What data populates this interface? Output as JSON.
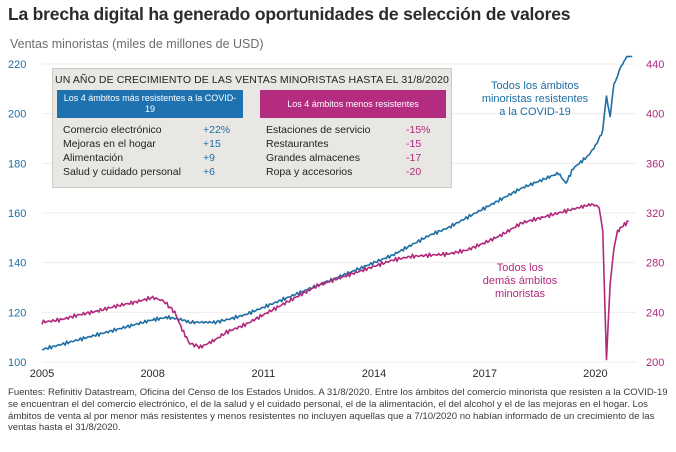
{
  "title": "La brecha digital ha generado oportunidades de selección de valores",
  "subtitle": "Ventas minoristas (miles de millones de USD)",
  "table": {
    "title": "UN AÑO DE CRECIMIENTO DE LAS VENTAS MINORISTAS HASTA EL 31/8/2020",
    "left": {
      "header": "Los 4 ámbitos más resistentes a la COVID-19",
      "rows": [
        {
          "label": "Comercio electrónico",
          "value": "+22%"
        },
        {
          "label": "Mejoras en el hogar",
          "value": "+15"
        },
        {
          "label": "Alimentación",
          "value": "+9"
        },
        {
          "label": "Salud y cuidado personal",
          "value": "+6"
        }
      ]
    },
    "right": {
      "header": "Los 4 ámbitos menos resistentes",
      "rows": [
        {
          "label": "Estaciones de servicio",
          "value": "-15%"
        },
        {
          "label": "Restaurantes",
          "value": "-15"
        },
        {
          "label": "Grandes almacenes",
          "value": "-17"
        },
        {
          "label": "Ropa y accesorios",
          "value": "-20"
        }
      ]
    }
  },
  "footer": "Fuentes: Refinitiv Datastream, Oficina del Censo de los Estados Unidos. A 31/8/2020. Entre los ámbitos del comercio minorista que resisten a la COVID-19 se encuentran el del comercio electrónico, el de la salud y el cuidado personal, el de la alimentación, el del alcohol y el de las mejoras en el hogar. Los ámbitos de venta al por menor más resistentes y menos resistentes no incluyen aquellas que a 7/10/2020 no habían informado de un crecimiento de las ventas hasta el 31/8/2020.",
  "chart_data": {
    "type": "line",
    "x_ticks": [
      "2005",
      "2008",
      "2011",
      "2014",
      "2017",
      "2020"
    ],
    "xlim": [
      2005,
      2021.1
    ],
    "y_left": {
      "ticks": [
        "100",
        "120",
        "140",
        "160",
        "180",
        "200",
        "220"
      ],
      "ylim": [
        100,
        220
      ],
      "color": "#1d6fa3"
    },
    "y_right": {
      "ticks": [
        "200",
        "240",
        "280",
        "320",
        "360",
        "400",
        "440"
      ],
      "ylim": [
        200,
        440
      ],
      "color": "#b0287c"
    },
    "series": [
      {
        "name": "Todos los ámbitos minoristas resistentes a la COVID-19",
        "label_lines": [
          "Todos los ámbitos",
          "minoristas resistentes",
          "a la COVID-19"
        ],
        "axis": "left",
        "color": "#1d6fa3",
        "points": [
          [
            2005.0,
            105
          ],
          [
            2005.5,
            107
          ],
          [
            2006.0,
            109
          ],
          [
            2006.5,
            111
          ],
          [
            2007.0,
            113
          ],
          [
            2007.5,
            115
          ],
          [
            2008.0,
            117
          ],
          [
            2008.4,
            118
          ],
          [
            2008.8,
            117
          ],
          [
            2009.0,
            116
          ],
          [
            2009.3,
            116
          ],
          [
            2009.7,
            116
          ],
          [
            2010.0,
            117
          ],
          [
            2010.5,
            119
          ],
          [
            2011.0,
            122
          ],
          [
            2011.5,
            125
          ],
          [
            2012.0,
            128
          ],
          [
            2012.5,
            131
          ],
          [
            2013.0,
            134
          ],
          [
            2013.5,
            137
          ],
          [
            2014.0,
            140
          ],
          [
            2014.5,
            143
          ],
          [
            2015.0,
            147
          ],
          [
            2015.5,
            151
          ],
          [
            2016.0,
            154
          ],
          [
            2016.5,
            158
          ],
          [
            2017.0,
            162
          ],
          [
            2017.5,
            166
          ],
          [
            2018.0,
            170
          ],
          [
            2018.5,
            173
          ],
          [
            2019.0,
            176
          ],
          [
            2019.2,
            172
          ],
          [
            2019.4,
            178
          ],
          [
            2019.8,
            183
          ],
          [
            2020.0,
            187
          ],
          [
            2020.2,
            193
          ],
          [
            2020.3,
            207
          ],
          [
            2020.4,
            199
          ],
          [
            2020.5,
            212
          ],
          [
            2020.6,
            215
          ],
          [
            2020.7,
            219
          ],
          [
            2020.85,
            223
          ],
          [
            2021.0,
            223
          ]
        ]
      },
      {
        "name": "Todos los demás ámbitos minoristas",
        "label_lines": [
          "Todos los",
          "demás ámbitos",
          "minoristas"
        ],
        "axis": "right",
        "color": "#b0287c",
        "points": [
          [
            2005.0,
            232
          ],
          [
            2005.5,
            234
          ],
          [
            2006.0,
            238
          ],
          [
            2006.5,
            241
          ],
          [
            2007.0,
            245
          ],
          [
            2007.5,
            248
          ],
          [
            2008.0,
            252
          ],
          [
            2008.3,
            249
          ],
          [
            2008.6,
            240
          ],
          [
            2008.8,
            226
          ],
          [
            2009.0,
            215
          ],
          [
            2009.3,
            212
          ],
          [
            2009.7,
            218
          ],
          [
            2010.0,
            224
          ],
          [
            2010.5,
            230
          ],
          [
            2011.0,
            238
          ],
          [
            2011.5,
            246
          ],
          [
            2012.0,
            254
          ],
          [
            2012.5,
            262
          ],
          [
            2013.0,
            267
          ],
          [
            2013.5,
            272
          ],
          [
            2014.0,
            277
          ],
          [
            2014.5,
            282
          ],
          [
            2015.0,
            285
          ],
          [
            2015.5,
            286
          ],
          [
            2016.0,
            287
          ],
          [
            2016.5,
            290
          ],
          [
            2017.0,
            296
          ],
          [
            2017.5,
            303
          ],
          [
            2018.0,
            312
          ],
          [
            2018.5,
            316
          ],
          [
            2019.0,
            320
          ],
          [
            2019.5,
            324
          ],
          [
            2019.9,
            327
          ],
          [
            2020.1,
            325
          ],
          [
            2020.2,
            305
          ],
          [
            2020.3,
            202
          ],
          [
            2020.4,
            262
          ],
          [
            2020.5,
            293
          ],
          [
            2020.6,
            305
          ],
          [
            2020.75,
            310
          ],
          [
            2020.9,
            313
          ]
        ]
      }
    ]
  }
}
